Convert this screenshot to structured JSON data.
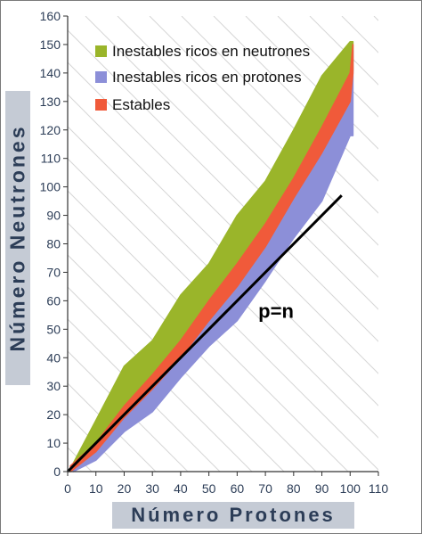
{
  "chart_data": {
    "type": "area",
    "xlabel": "Número Protones",
    "ylabel": "Número Neutrones",
    "xlim": [
      0,
      110
    ],
    "ylim": [
      0,
      160
    ],
    "xticks": [
      "0",
      "10",
      "20",
      "30",
      "40",
      "50",
      "60",
      "70",
      "80",
      "90",
      "100",
      "110"
    ],
    "yticks": [
      "0",
      "10",
      "20",
      "30",
      "40",
      "50",
      "60",
      "70",
      "80",
      "90",
      "100",
      "110",
      "120",
      "130",
      "140",
      "150",
      "160"
    ],
    "grid": "diagonal",
    "legend_position": "top-left",
    "annotation": "p=n",
    "reference_line": {
      "x": [
        0,
        97
      ],
      "y": [
        0,
        97
      ]
    },
    "series": [
      {
        "name": "Inestables ricos en neutrones",
        "color": "#9ab52a",
        "lower": [
          [
            2,
            1
          ],
          [
            10,
            9
          ],
          [
            20,
            22
          ],
          [
            30,
            33
          ],
          [
            40,
            44
          ],
          [
            50,
            58
          ],
          [
            60,
            71
          ],
          [
            70,
            85
          ],
          [
            80,
            101
          ],
          [
            90,
            118
          ],
          [
            100,
            133
          ],
          [
            101,
            141
          ]
        ],
        "upper": [
          [
            2,
            3
          ],
          [
            10,
            18
          ],
          [
            20,
            37
          ],
          [
            30,
            46
          ],
          [
            40,
            62
          ],
          [
            50,
            73
          ],
          [
            60,
            90
          ],
          [
            70,
            102
          ],
          [
            80,
            120
          ],
          [
            90,
            139
          ],
          [
            100,
            151
          ],
          [
            101,
            151
          ]
        ]
      },
      {
        "name": "Inestables ricos en protones",
        "color": "#8c8fd8",
        "lower": [
          [
            2,
            0
          ],
          [
            10,
            4
          ],
          [
            20,
            14
          ],
          [
            30,
            21
          ],
          [
            40,
            33
          ],
          [
            50,
            44
          ],
          [
            60,
            53
          ],
          [
            70,
            67
          ],
          [
            80,
            82
          ],
          [
            90,
            95
          ],
          [
            100,
            118
          ],
          [
            101,
            118
          ]
        ],
        "upper": [
          [
            2,
            2
          ],
          [
            10,
            8
          ],
          [
            20,
            20
          ],
          [
            30,
            30
          ],
          [
            40,
            41
          ],
          [
            50,
            54
          ],
          [
            60,
            66
          ],
          [
            70,
            80
          ],
          [
            80,
            96
          ],
          [
            90,
            112
          ],
          [
            100,
            130
          ],
          [
            101,
            148
          ]
        ]
      },
      {
        "name": "Estables",
        "color": "#f05a3a",
        "lower": [
          [
            1,
            0
          ],
          [
            10,
            7
          ],
          [
            20,
            19
          ],
          [
            30,
            29
          ],
          [
            40,
            40
          ],
          [
            50,
            53
          ],
          [
            60,
            65
          ],
          [
            70,
            79
          ],
          [
            80,
            96
          ],
          [
            90,
            112
          ],
          [
            100,
            130
          ],
          [
            101,
            140
          ]
        ],
        "upper": [
          [
            1,
            2
          ],
          [
            10,
            10
          ],
          [
            20,
            23
          ],
          [
            30,
            34
          ],
          [
            40,
            46
          ],
          [
            50,
            60
          ],
          [
            60,
            73
          ],
          [
            70,
            87
          ],
          [
            80,
            103
          ],
          [
            90,
            121
          ],
          [
            100,
            140
          ],
          [
            101,
            150
          ]
        ]
      }
    ]
  }
}
